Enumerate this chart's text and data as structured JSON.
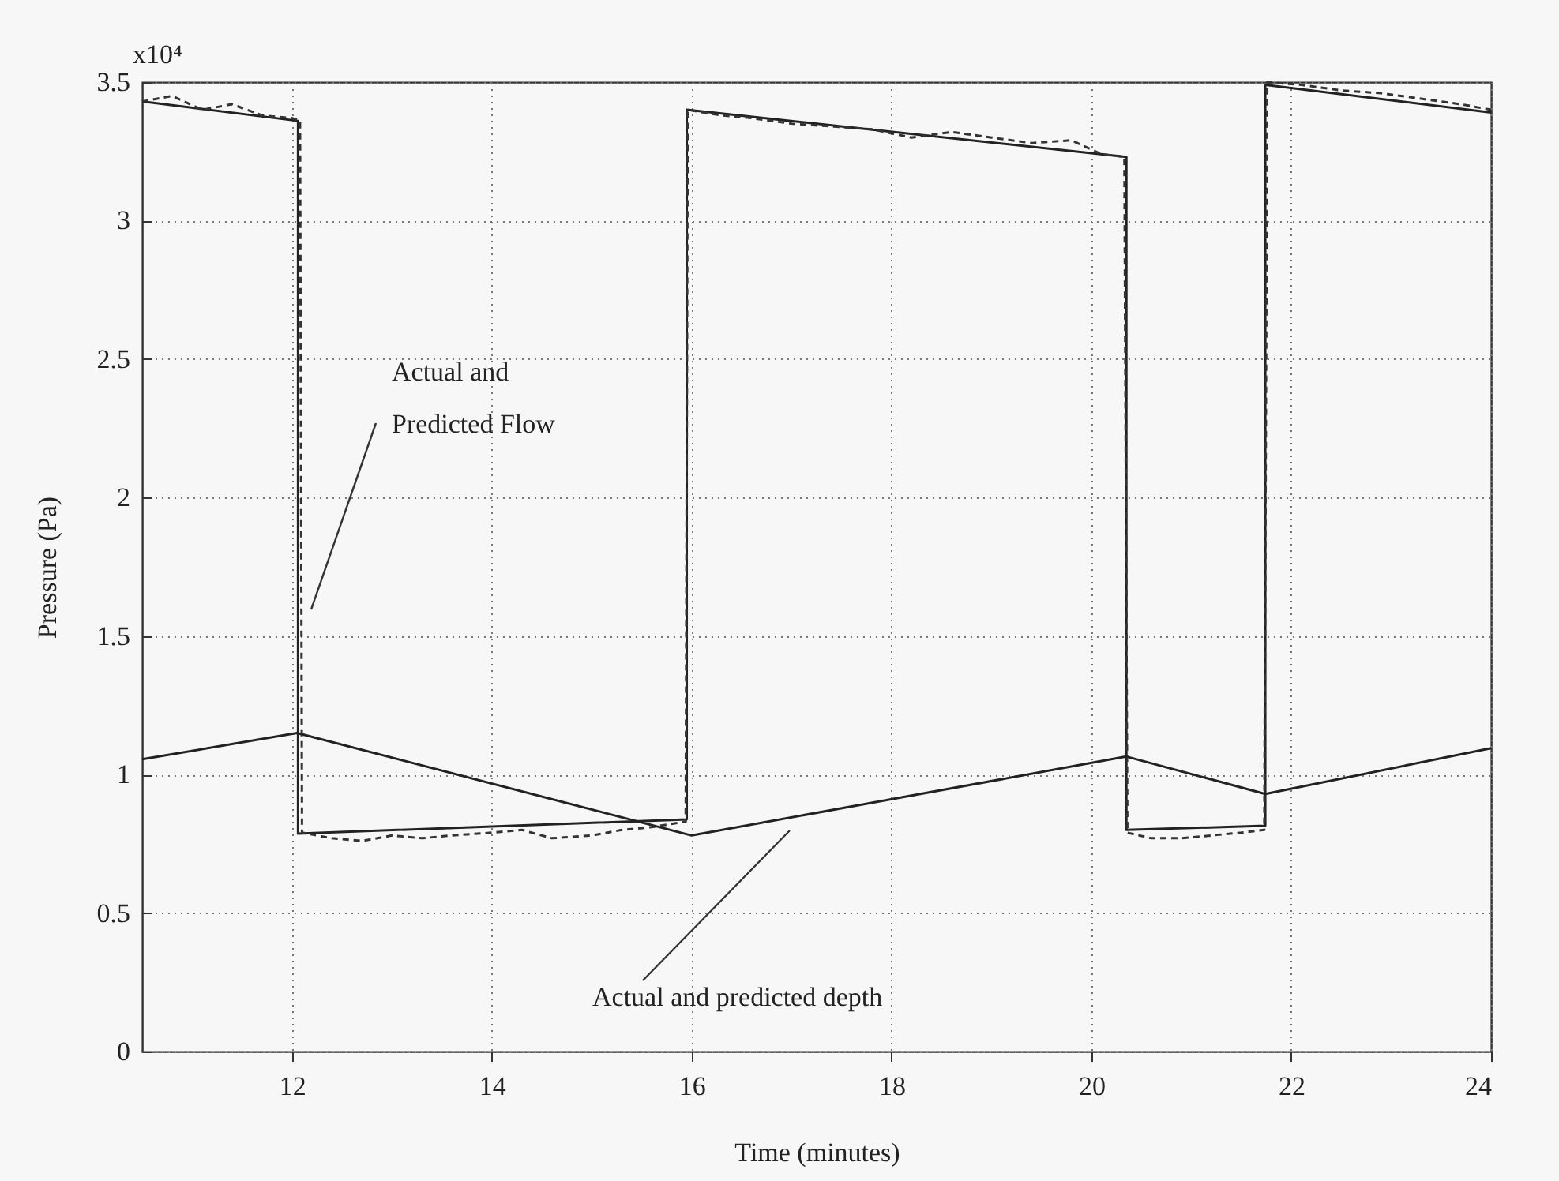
{
  "chart_data": {
    "type": "line",
    "xlabel": "Time (minutes)",
    "ylabel": "Pressure (Pa)",
    "xlim": [
      10.5,
      24
    ],
    "xticks": [
      12,
      14,
      16,
      18,
      20,
      22,
      24
    ],
    "ylim": [
      0,
      3.5
    ],
    "yticks": [
      0,
      0.5,
      1,
      1.5,
      2,
      2.5,
      3,
      3.5
    ],
    "grid": true,
    "marker": "none",
    "series": [
      {
        "color": "#222222",
        "line_style": "solid",
        "x": [
          10.5,
          12.06,
          12.06,
          15.95,
          15.95,
          20.35,
          20.35,
          21.74,
          21.74,
          24
        ],
        "values": [
          3.43,
          3.36,
          0.787,
          0.838,
          3.4,
          3.23,
          0.8,
          0.815,
          3.49,
          3.39
        ]
      },
      {
        "color": "#333333",
        "line_style": "dashed",
        "x": [
          10.5,
          10.8,
          11.1,
          11.4,
          11.7,
          12.0,
          12.08,
          12.1,
          12.4,
          12.7,
          13.0,
          13.3,
          13.6,
          14.0,
          14.3,
          14.6,
          15.0,
          15.3,
          15.6,
          15.94,
          15.96,
          16.3,
          16.6,
          17.0,
          17.4,
          17.8,
          18.2,
          18.6,
          19.0,
          19.4,
          19.8,
          20.1,
          20.33,
          20.36,
          20.6,
          20.9,
          21.2,
          21.5,
          21.73,
          21.76,
          22.1,
          22.5,
          22.9,
          23.3,
          23.7,
          24
        ],
        "values": [
          3.43,
          3.45,
          3.4,
          3.42,
          3.38,
          3.37,
          3.36,
          0.79,
          0.77,
          0.76,
          0.78,
          0.77,
          0.78,
          0.79,
          0.8,
          0.77,
          0.78,
          0.8,
          0.81,
          0.83,
          3.4,
          3.38,
          3.37,
          3.35,
          3.34,
          3.33,
          3.3,
          3.32,
          3.3,
          3.28,
          3.29,
          3.24,
          3.23,
          0.79,
          0.77,
          0.77,
          0.78,
          0.79,
          0.8,
          3.5,
          3.49,
          3.47,
          3.46,
          3.44,
          3.42,
          3.4
        ]
      },
      {
        "color": "#222222",
        "line_style": "solid",
        "x": [
          10.5,
          12.05,
          16,
          20.35,
          21.74,
          24
        ],
        "values": [
          1.055,
          1.15,
          0.78,
          1.065,
          0.93,
          1.095
        ]
      }
    ],
    "annotations": [
      "x10⁴",
      "Actual and\nPredicted Flow",
      "Actual and predicted depth"
    ]
  }
}
